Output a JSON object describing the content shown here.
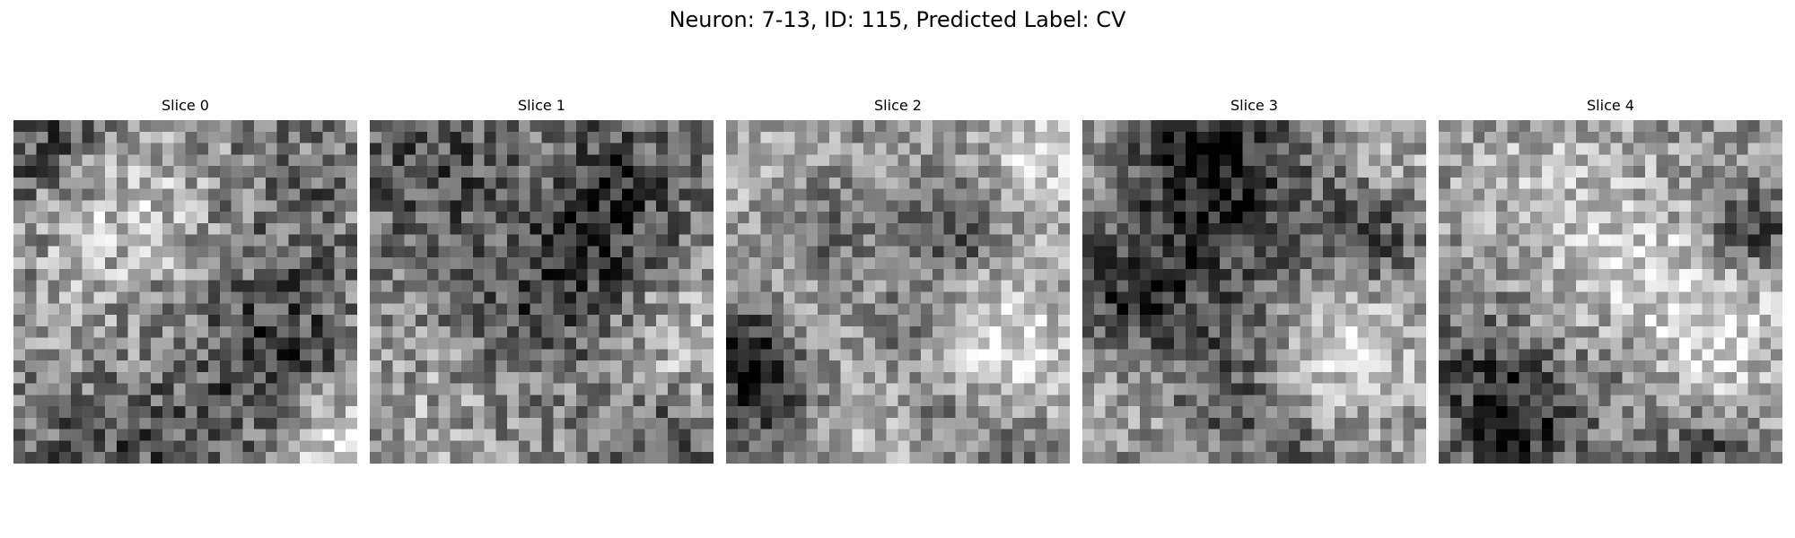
{
  "figure": {
    "title": "Neuron: 7-13, ID: 115, Predicted Label: CV"
  },
  "slices": [
    {
      "label": "Slice 0"
    },
    {
      "label": "Slice 1"
    },
    {
      "label": "Slice 2"
    },
    {
      "label": "Slice 3"
    },
    {
      "label": "Slice 4"
    }
  ],
  "colormap": "gray"
}
